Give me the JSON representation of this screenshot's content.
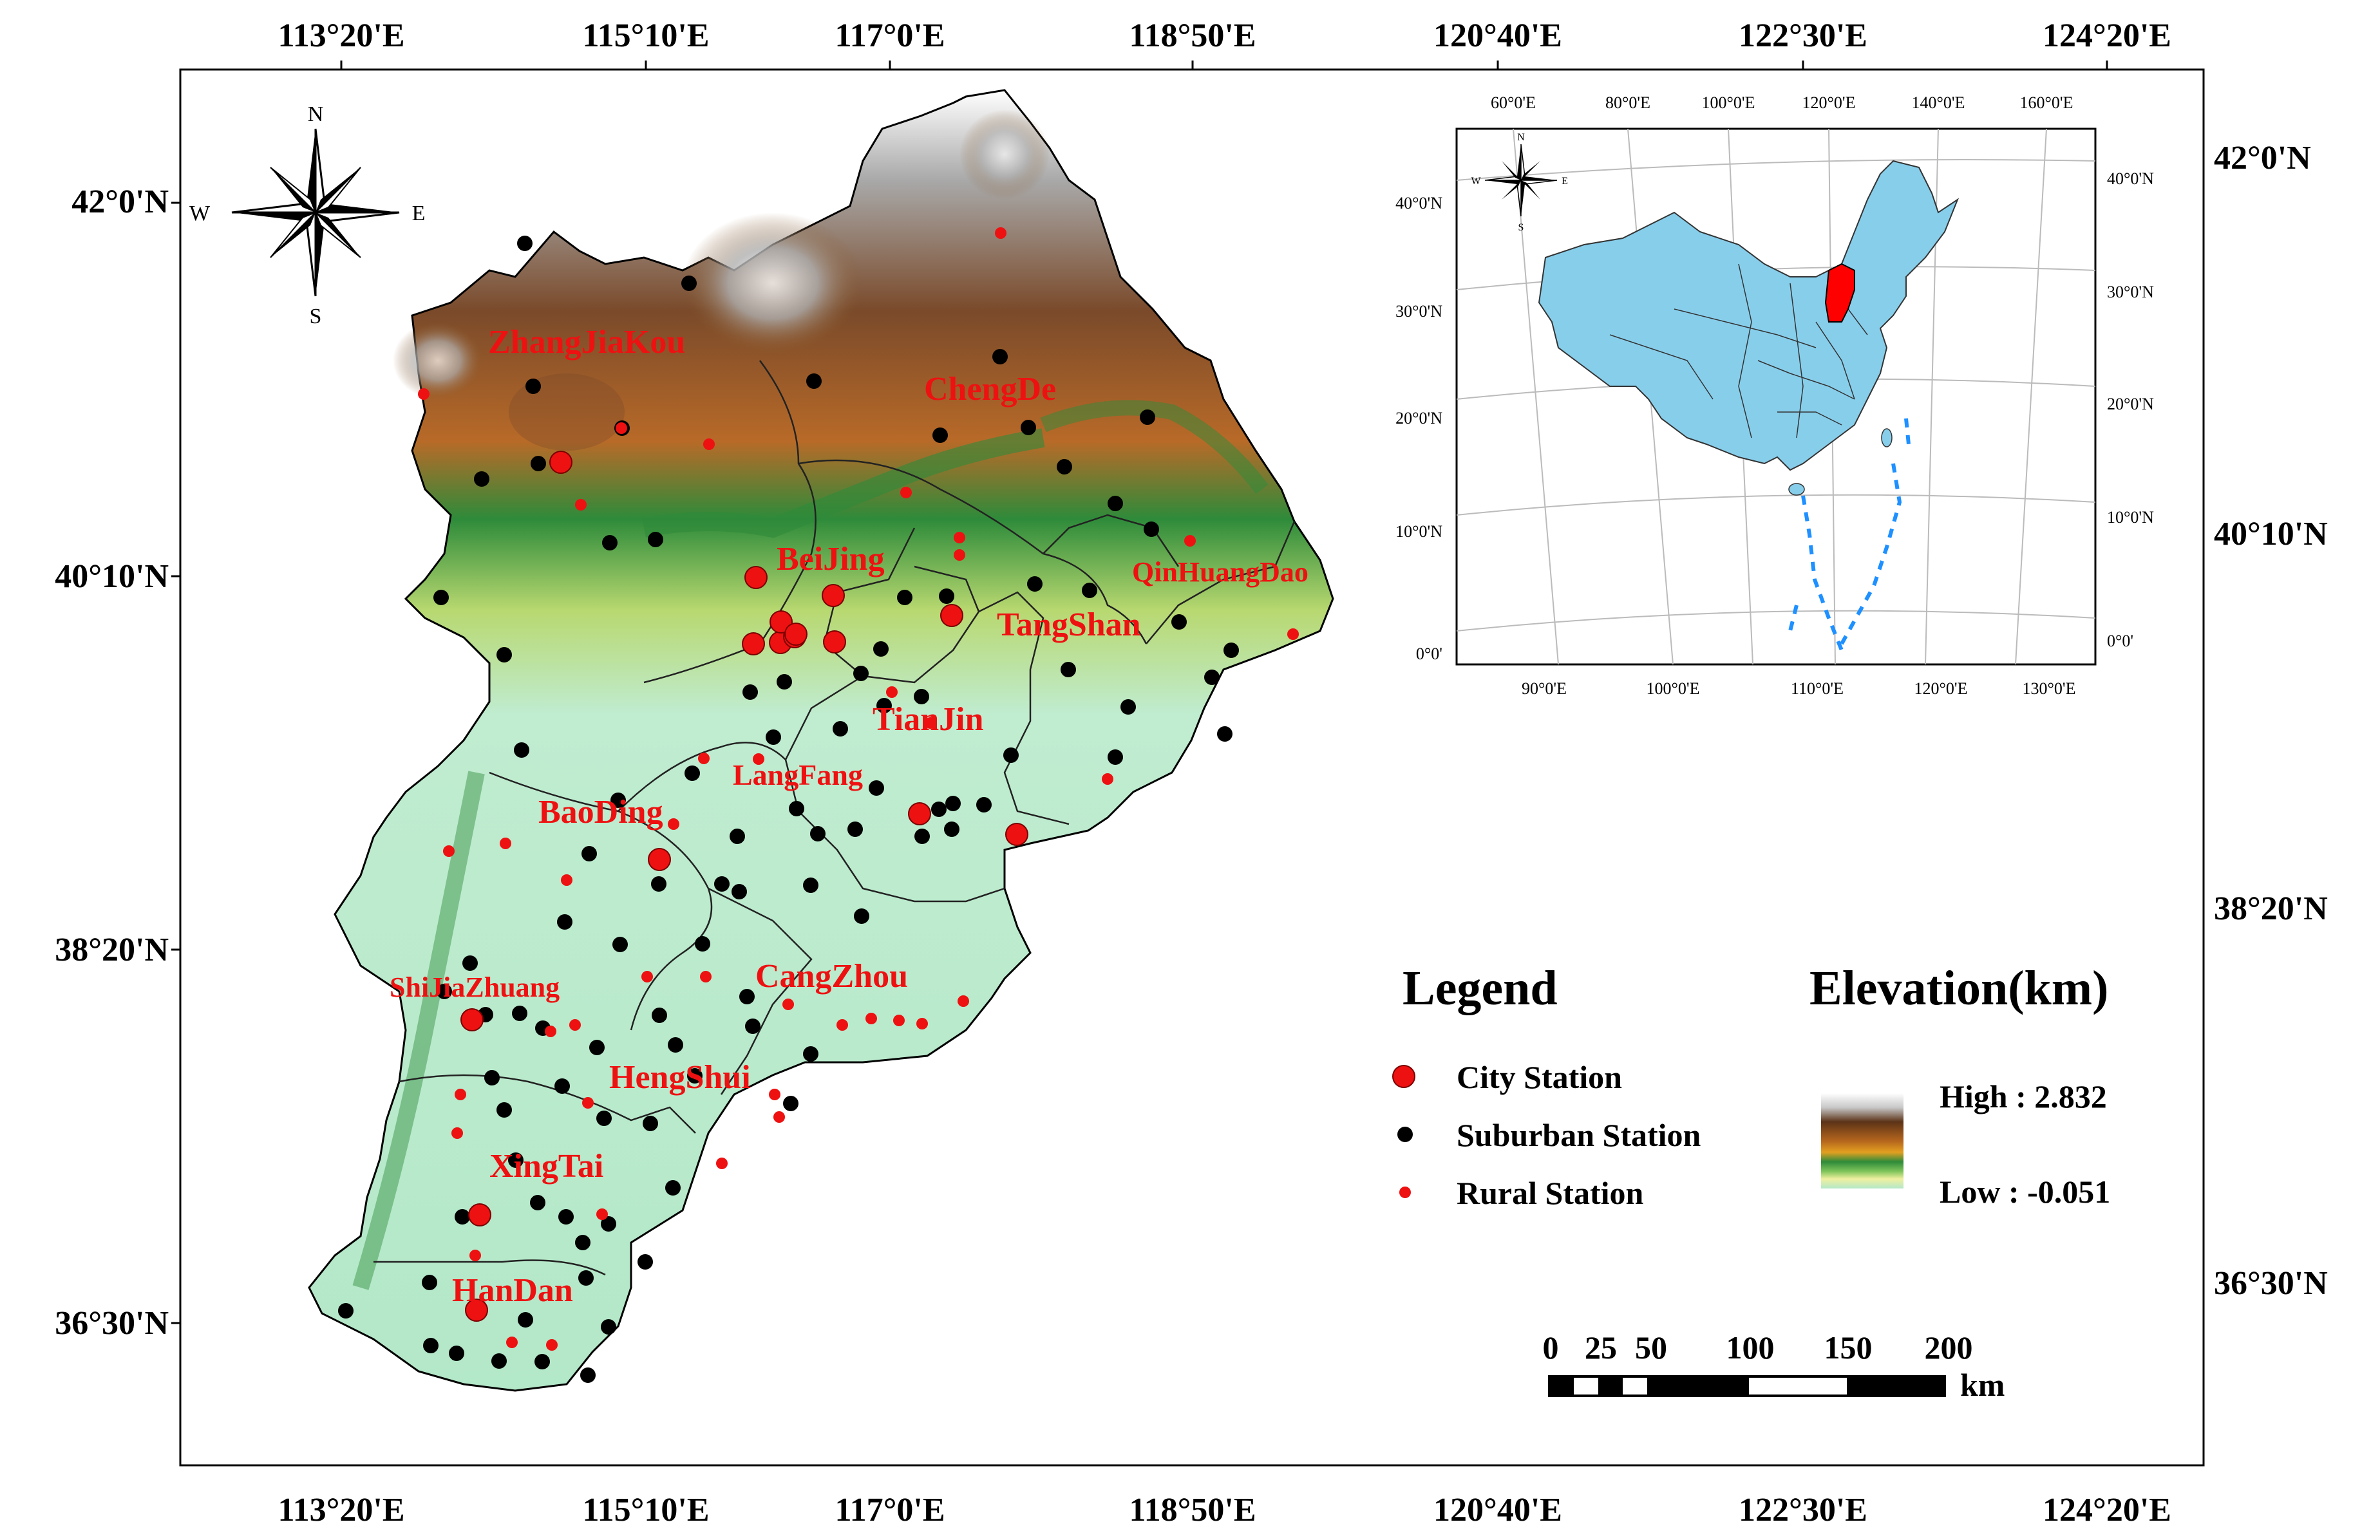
{
  "frame": {
    "top_lon_labels": [
      "113°20'E",
      "115°10'E",
      "117°0'E",
      "118°50'E",
      "120°40'E",
      "122°30'E",
      "124°20'E"
    ],
    "bottom_lon_labels": [
      "113°20'E",
      "115°10'E",
      "117°0'E",
      "118°50'E",
      "120°40'E",
      "122°30'E",
      "124°20'E"
    ],
    "left_lat_labels": [
      "42°0'N",
      "40°10'N",
      "38°20'N",
      "36°30'N"
    ],
    "right_lat_labels": [
      "42°0'N",
      "40°10'N",
      "38°20'N",
      "36°30'N"
    ]
  },
  "north_arrow": {
    "n": "N",
    "s": "S",
    "e": "E",
    "w": "W"
  },
  "cities": [
    {
      "name": "ZhangJiaKou",
      "size": "large"
    },
    {
      "name": "ChengDe",
      "size": "large"
    },
    {
      "name": "BeiJing",
      "size": "large"
    },
    {
      "name": "QinHuangDao",
      "size": "small"
    },
    {
      "name": "TangShan",
      "size": "large"
    },
    {
      "name": "TianJin",
      "size": "large"
    },
    {
      "name": "LangFang",
      "size": "small"
    },
    {
      "name": "BaoDing",
      "size": "large"
    },
    {
      "name": "CangZhou",
      "size": "large"
    },
    {
      "name": "ShiJiaZhuang",
      "size": "small"
    },
    {
      "name": "HengShui",
      "size": "large"
    },
    {
      "name": "XingTai",
      "size": "large"
    },
    {
      "name": "HanDan",
      "size": "large"
    }
  ],
  "inset": {
    "top_lon_labels": [
      "60°0'E",
      "80°0'E",
      "100°0'E",
      "120°0'E",
      "140°0'E",
      "160°0'E"
    ],
    "bottom_lon_labels": [
      "90°0'E",
      "100°0'E",
      "110°0'E",
      "120°0'E",
      "130°0'E"
    ],
    "left_lat_labels": [
      "40°0'N",
      "30°0'N",
      "20°0'N",
      "10°0'N",
      "0°0'"
    ],
    "right_lat_labels": [
      "40°0'N",
      "30°0'N",
      "20°0'N",
      "10°0'N",
      "0°0'"
    ],
    "north_arrow": {
      "n": "N",
      "s": "S",
      "e": "E",
      "w": "W"
    },
    "colors": {
      "land": "#87ceeb",
      "region": "#ff0000",
      "islands": "#1e90ff"
    }
  },
  "legend": {
    "title": "Legend",
    "items": [
      {
        "label": "City Station",
        "color": "#ee1111",
        "symbol": "large-red-dot"
      },
      {
        "label": "Suburban Station",
        "color": "#000000",
        "symbol": "black-dot"
      },
      {
        "label": "Rural Station",
        "color": "#ee1111",
        "symbol": "small-red-dot"
      }
    ]
  },
  "elevation": {
    "title": "Elevation(km)",
    "high_label": "High : 2.832",
    "low_label": "Low : -0.051",
    "ramp_colors": [
      "#ffffff",
      "#c8c8c8",
      "#8b5a2b",
      "#5c3317",
      "#b5651d",
      "#e3a020",
      "#2e8b3a",
      "#7fc45a",
      "#f0f0a0",
      "#b3e8c8"
    ]
  },
  "scale_bar": {
    "ticks": [
      "0",
      "25",
      "50",
      "100",
      "150",
      "200"
    ],
    "unit": "km"
  }
}
